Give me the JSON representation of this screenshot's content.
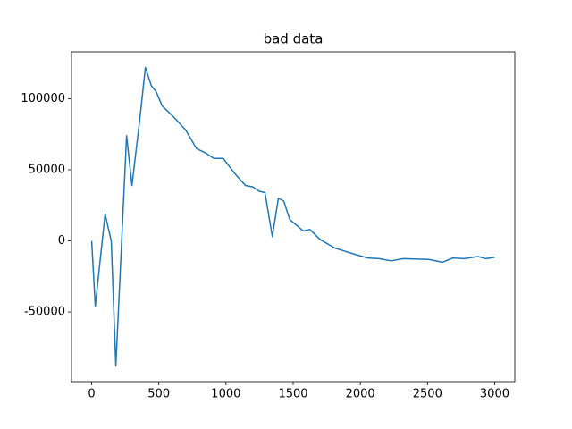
{
  "chart_data": {
    "type": "line",
    "title": "bad data",
    "x": [
      0,
      27,
      100,
      146,
      180,
      260,
      300,
      360,
      400,
      445,
      480,
      525,
      612,
      700,
      780,
      845,
      910,
      980,
      1060,
      1145,
      1200,
      1245,
      1290,
      1345,
      1390,
      1430,
      1475,
      1575,
      1625,
      1700,
      1810,
      1945,
      2055,
      2140,
      2230,
      2320,
      2510,
      2610,
      2690,
      2775,
      2875,
      2935,
      3000
    ],
    "series": [
      {
        "color": "#1f77b4",
        "values": [
          0,
          -46000,
          19000,
          0,
          -88000,
          74000,
          39000,
          87000,
          122000,
          109000,
          105000,
          95000,
          87000,
          78000,
          65000,
          62000,
          58000,
          58000,
          48000,
          39000,
          38000,
          35000,
          34000,
          3000,
          30000,
          28000,
          15000,
          7000,
          8000,
          1000,
          -5000,
          -9000,
          -12000,
          -12500,
          -14000,
          -12500,
          -13000,
          -15000,
          -12000,
          -12500,
          -11000,
          -12500,
          -11500
        ]
      }
    ],
    "xlim": [
      -150,
      3150
    ],
    "ylim": [
      -99000,
      133000
    ],
    "xticks": [
      0,
      500,
      1000,
      1500,
      2000,
      2500,
      3000
    ],
    "yticks": [
      -50000,
      0,
      50000,
      100000
    ]
  }
}
